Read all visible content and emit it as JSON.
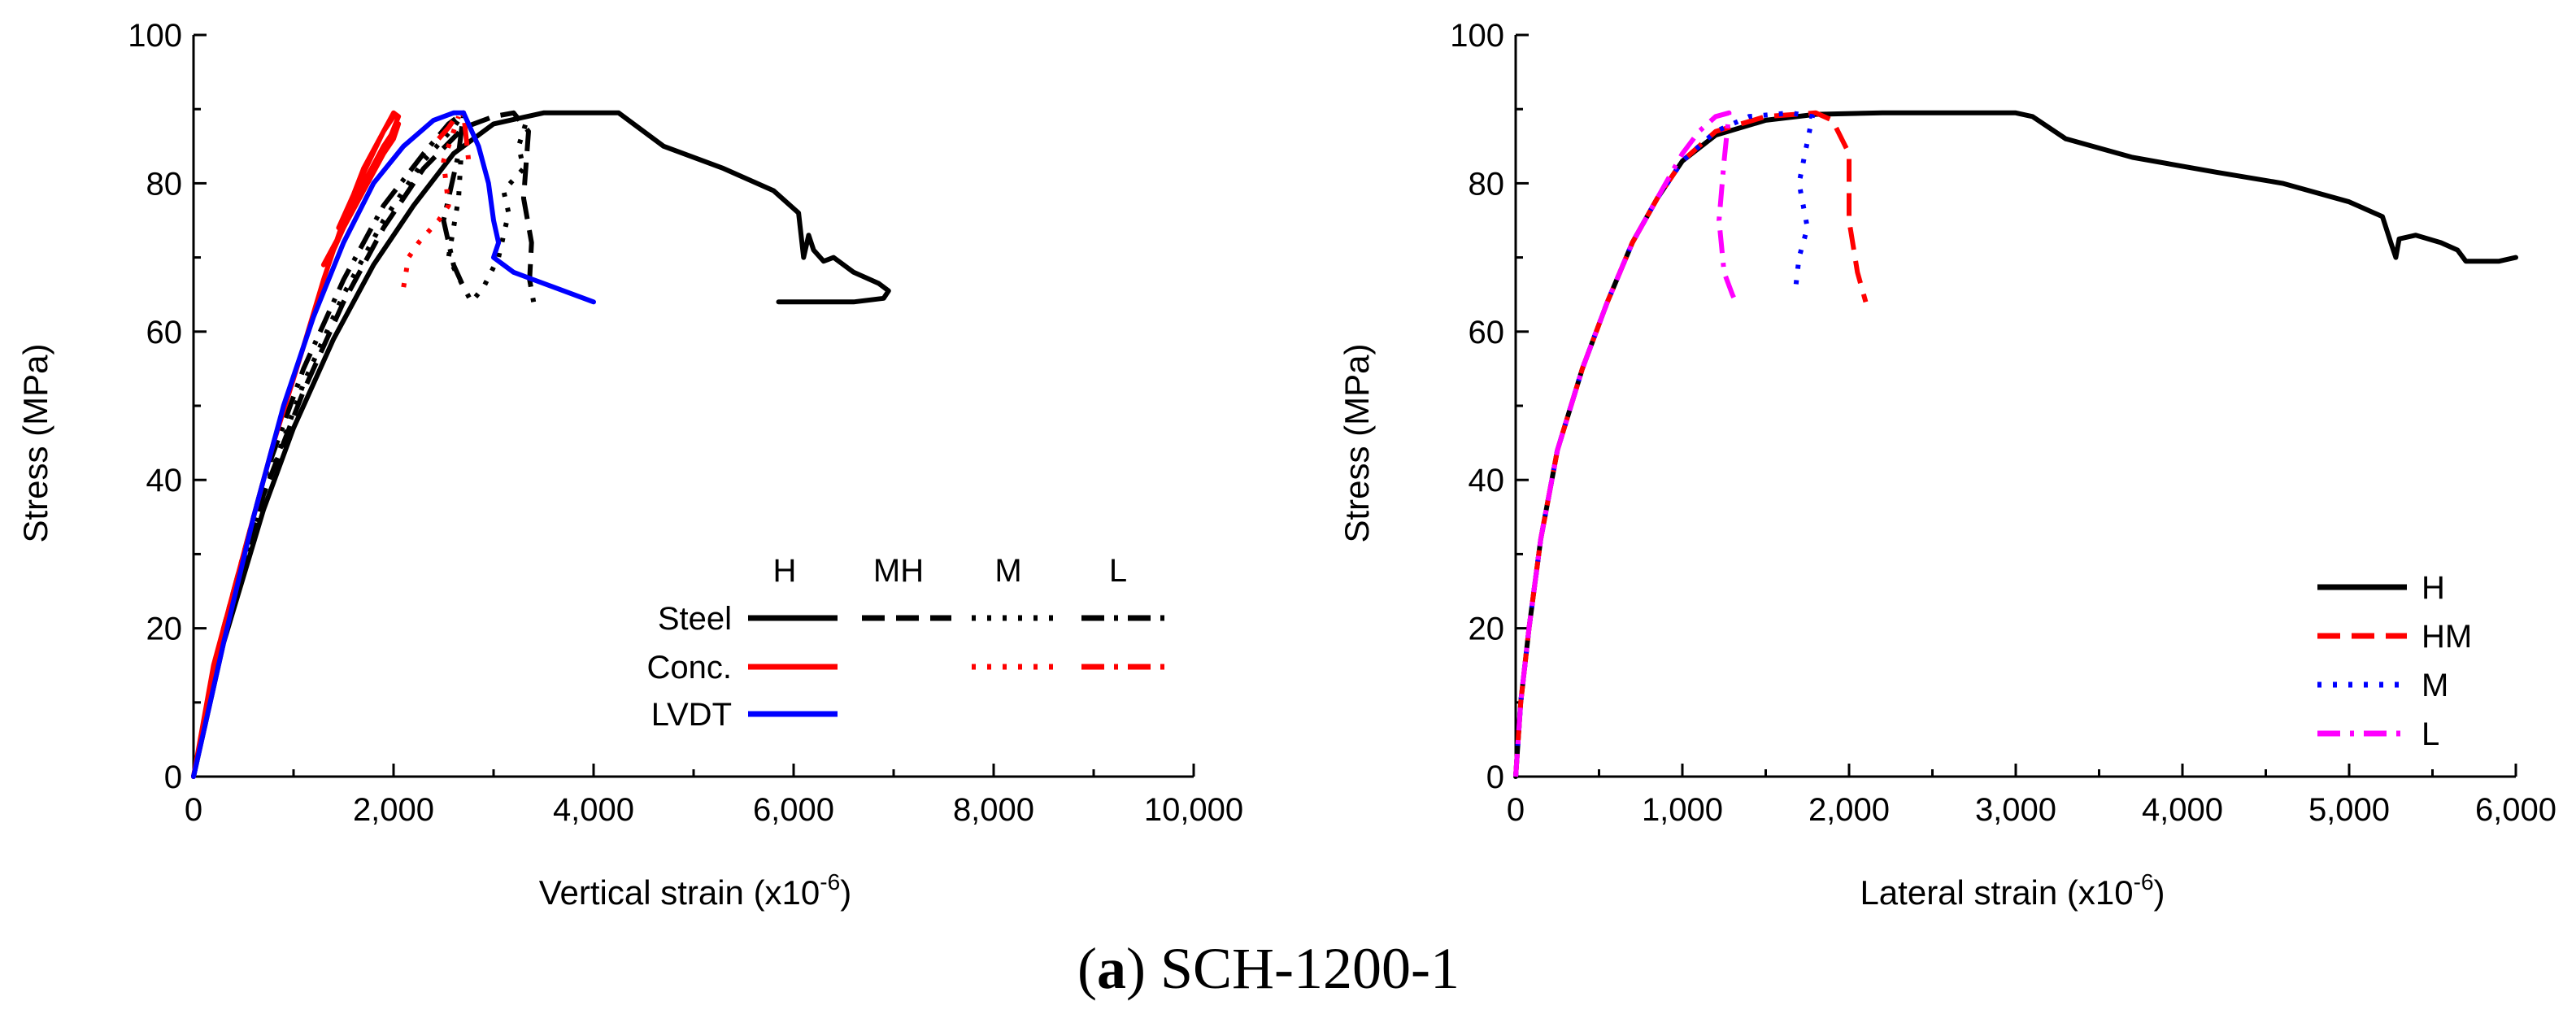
{
  "caption": {
    "prefix": "(",
    "letter": "a",
    "suffix": ") SCH-1200-1"
  },
  "chart_data": [
    {
      "type": "line",
      "xlabel": "Vertical strain (x10",
      "xlabel_exp": "-6",
      "xlabel_close": ")",
      "ylabel": "Stress (MPa)",
      "xlim": [
        0,
        10000
      ],
      "ylim": [
        0,
        100
      ],
      "xticks": [
        "0",
        "2,000",
        "4,000",
        "6,000",
        "8,000",
        "10,000"
      ],
      "yticks": [
        "0",
        "20",
        "40",
        "60",
        "80",
        "100"
      ],
      "legend": {
        "columns": [
          "H",
          "MH",
          "M",
          "L"
        ],
        "rows": [
          "Steel",
          "Conc.",
          "LVDT"
        ]
      },
      "series": [
        {
          "name": "Steel H",
          "color": "#000000",
          "dash": "solid",
          "x": [
            0,
            300,
            700,
            1000,
            1400,
            1800,
            2200,
            2600,
            3000,
            3500,
            4000,
            4250,
            4400,
            4700,
            5300,
            5800,
            6050,
            6100,
            6150,
            6200,
            6300,
            6400,
            6600,
            6850,
            6950,
            6900,
            6600,
            6000,
            5850
          ],
          "y": [
            0,
            18,
            36,
            47,
            59,
            69,
            77,
            84,
            88,
            89.5,
            89.5,
            89.5,
            88,
            85,
            82,
            79,
            76,
            70,
            73,
            71,
            69.5,
            70,
            68,
            66.5,
            65.5,
            64.5,
            64,
            64,
            64
          ]
        },
        {
          "name": "Steel MH",
          "color": "#000000",
          "dash": "dash",
          "x": [
            0,
            300,
            700,
            1100,
            1500,
            1900,
            2300,
            2700,
            3000,
            3200,
            3350,
            3300,
            3380,
            3360,
            3400
          ],
          "y": [
            0,
            19,
            38,
            52,
            64,
            74,
            82,
            87.5,
            89,
            89.5,
            87,
            78,
            72,
            67,
            64
          ]
        },
        {
          "name": "Steel M",
          "color": "#000000",
          "dash": "dot",
          "x": [
            0,
            300,
            700,
            1100,
            1500,
            1900,
            2300,
            2600,
            2700,
            2650,
            2550,
            2700,
            2780,
            2900,
            3050,
            3150,
            3100,
            3300,
            3250,
            3320
          ],
          "y": [
            0,
            19,
            38,
            53,
            65,
            75,
            83,
            87.5,
            89.5,
            78,
            70,
            66,
            64,
            66,
            70,
            76,
            79,
            82,
            85,
            88
          ]
        },
        {
          "name": "Steel L",
          "color": "#000000",
          "dash": "dashdot",
          "x": [
            0,
            300,
            700,
            1100,
            1500,
            1900,
            2300,
            2550,
            2700,
            2650,
            2500,
            2600,
            2700
          ],
          "y": [
            0,
            20,
            40,
            55,
            67,
            77,
            84,
            88,
            89.5,
            84,
            75,
            69,
            66
          ]
        },
        {
          "name": "Conc. H",
          "color": "#ff0000",
          "dash": "solid",
          "x": [
            0,
            200,
            500,
            800,
            1100,
            1300,
            1500,
            1700,
            1900,
            2000,
            2050,
            1900,
            1700,
            1500,
            1400,
            1300,
            1500,
            1700,
            1900,
            2050,
            2000,
            1800,
            1600,
            1450,
            1650,
            1900,
            2000
          ],
          "y": [
            0,
            15,
            30,
            45,
            58,
            67,
            75,
            82,
            87,
            89.5,
            89,
            84,
            79,
            74,
            71,
            69,
            74,
            80,
            85,
            88,
            86,
            82,
            78,
            74,
            80,
            87,
            89
          ]
        },
        {
          "name": "Conc. M",
          "color": "#ff0000",
          "dash": "dot",
          "x": [
            2100,
            2150,
            2250,
            2350,
            2450,
            2550,
            2500,
            2600,
            2650
          ],
          "y": [
            66,
            70,
            72,
            73.5,
            75,
            77,
            83,
            87,
            89
          ]
        },
        {
          "name": "Conc. L",
          "color": "#ff0000",
          "dash": "dashdot",
          "x": [
            2450,
            2550,
            2600,
            2700,
            2750
          ],
          "y": [
            86,
            87.5,
            88.5,
            89.5,
            83
          ]
        },
        {
          "name": "LVDT H",
          "color": "#0000ff",
          "dash": "solid",
          "x": [
            0,
            300,
            600,
            900,
            1200,
            1500,
            1800,
            2100,
            2400,
            2600,
            2700,
            2850,
            2950,
            3000,
            3050,
            3000,
            3100,
            3200,
            3400,
            3600,
            3800,
            4000
          ],
          "y": [
            0,
            18,
            35,
            50,
            62,
            72,
            80,
            85,
            88.5,
            89.5,
            89.5,
            85,
            80,
            75,
            72,
            70,
            69,
            68,
            67,
            66,
            65,
            64
          ]
        }
      ]
    },
    {
      "type": "line",
      "xlabel": "Lateral strain (x10",
      "xlabel_exp": "-6",
      "xlabel_close": ")",
      "ylabel": "Stress (MPa)",
      "xlim": [
        0,
        6000
      ],
      "ylim": [
        0,
        100
      ],
      "xticks": [
        "0",
        "1,000",
        "2,000",
        "3,000",
        "4,000",
        "5,000",
        "6,000"
      ],
      "yticks": [
        "0",
        "20",
        "40",
        "60",
        "80",
        "100"
      ],
      "legend": {
        "entries": [
          "H",
          "HM",
          "M",
          "L"
        ]
      },
      "series": [
        {
          "name": "H",
          "color": "#000000",
          "dash": "solid",
          "x": [
            0,
            30,
            80,
            150,
            250,
            400,
            550,
            700,
            850,
            1000,
            1200,
            1500,
            1800,
            2200,
            2600,
            3000,
            3100,
            3300,
            3700,
            4200,
            4600,
            5000,
            5200,
            5250,
            5280,
            5300,
            5400,
            5550,
            5650,
            5700,
            5900,
            6000
          ],
          "y": [
            0,
            10,
            20,
            32,
            44,
            55,
            64,
            72,
            78,
            83,
            86.5,
            88.5,
            89.3,
            89.5,
            89.5,
            89.5,
            89,
            86,
            83.5,
            81.5,
            80,
            77.5,
            75.5,
            72,
            70,
            72.5,
            73,
            72,
            71,
            69.5,
            69.5,
            70
          ]
        },
        {
          "name": "HM",
          "color": "#ff0000",
          "dash": "dash",
          "x": [
            0,
            30,
            80,
            150,
            250,
            400,
            550,
            700,
            850,
            1000,
            1200,
            1500,
            1800,
            1900,
            2000,
            2000,
            2050,
            2100
          ],
          "y": [
            0,
            10,
            20,
            32,
            44,
            55,
            64,
            72,
            78,
            83,
            87,
            89,
            89.5,
            88.5,
            84,
            75,
            68,
            64
          ]
        },
        {
          "name": "M",
          "color": "#0000ff",
          "dash": "dot",
          "x": [
            0,
            30,
            80,
            150,
            250,
            400,
            550,
            700,
            850,
            1000,
            1200,
            1400,
            1650,
            1780,
            1700,
            1750,
            1700,
            1680
          ],
          "y": [
            0,
            10,
            20,
            32,
            44,
            55,
            64,
            72,
            78,
            83,
            87,
            89,
            89.5,
            89,
            80,
            74,
            70,
            66
          ]
        },
        {
          "name": "L",
          "color": "#ff00ff",
          "dash": "dashdot",
          "x": [
            0,
            30,
            80,
            150,
            250,
            400,
            550,
            700,
            850,
            1000,
            1100,
            1200,
            1280,
            1250,
            1220,
            1250,
            1300,
            1320
          ],
          "y": [
            0,
            10,
            20,
            32,
            44,
            55,
            64,
            72,
            78,
            84,
            87,
            89,
            89.5,
            83,
            75,
            68,
            65,
            64
          ]
        }
      ]
    }
  ]
}
